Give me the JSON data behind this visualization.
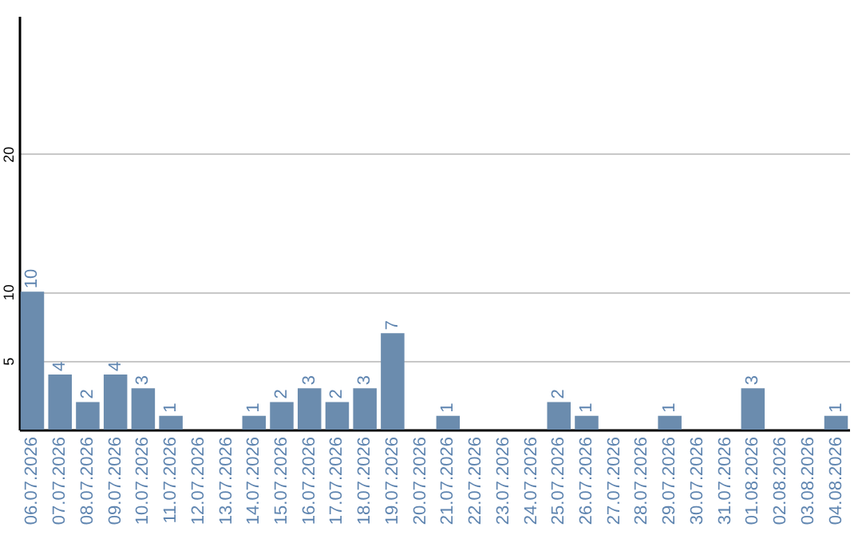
{
  "chart_data": {
    "type": "bar",
    "categories": [
      "06.07.2026",
      "07.07.2026",
      "08.07.2026",
      "09.07.2026",
      "10.07.2026",
      "11.07.2026",
      "12.07.2026",
      "13.07.2026",
      "14.07.2026",
      "15.07.2026",
      "16.07.2026",
      "17.07.2026",
      "18.07.2026",
      "19.07.2026",
      "20.07.2026",
      "21.07.2026",
      "22.07.2026",
      "23.07.2026",
      "24.07.2026",
      "25.07.2026",
      "26.07.2026",
      "27.07.2026",
      "28.07.2026",
      "29.07.2026",
      "30.07.2026",
      "31.07.2026",
      "01.08.2026",
      "02.08.2026",
      "03.08.2026",
      "04.08.2026"
    ],
    "values": [
      10,
      4,
      2,
      4,
      3,
      1,
      null,
      null,
      1,
      2,
      3,
      2,
      3,
      7,
      null,
      1,
      null,
      null,
      null,
      2,
      1,
      null,
      null,
      1,
      null,
      null,
      3,
      null,
      null,
      1
    ],
    "color": "#6b8cae",
    "ylim": [
      0,
      30
    ],
    "yticks": [
      5,
      10,
      20
    ],
    "grid": "y",
    "data_labels": true
  }
}
